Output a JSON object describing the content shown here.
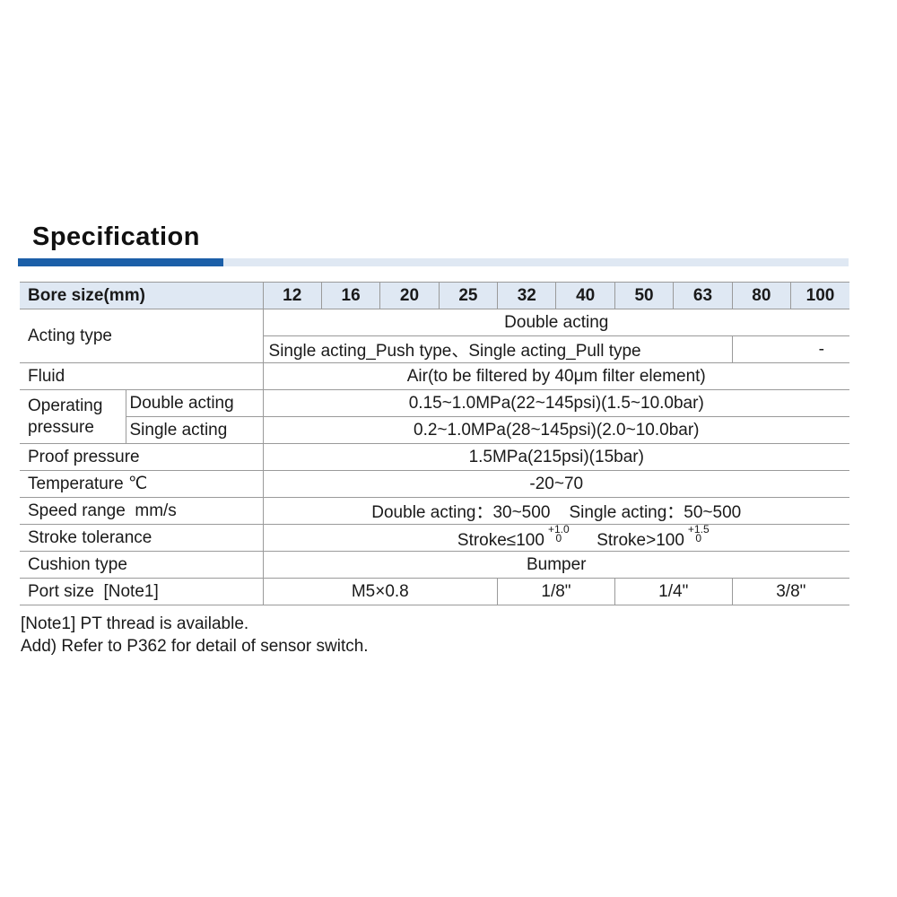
{
  "title": "Specification",
  "colors": {
    "accent": "#1b5fa8",
    "header_bg": "#dfe8f3"
  },
  "table": {
    "bore_label": "Bore size(mm)",
    "bore_sizes": [
      "12",
      "16",
      "20",
      "25",
      "32",
      "40",
      "50",
      "63",
      "80",
      "100"
    ],
    "acting_type": {
      "label": "Acting type",
      "double": "Double acting",
      "single": "Single acting_Push type、Single acting_Pull type",
      "single_large": "-"
    },
    "fluid": {
      "label": "Fluid",
      "value": "Air(to be filtered by 40μm filter element)"
    },
    "operating_pressure": {
      "label": "Operating pressure",
      "double_label": "Double acting",
      "double_value": "0.15~1.0MPa(22~145psi)(1.5~10.0bar)",
      "single_label": "Single acting",
      "single_value": "0.2~1.0MPa(28~145psi)(2.0~10.0bar)"
    },
    "proof_pressure": {
      "label": "Proof pressure",
      "value": "1.5MPa(215psi)(15bar)"
    },
    "temperature": {
      "label": "Temperature ℃",
      "value": "-20~70"
    },
    "speed_range": {
      "label": "Speed range  mm/s",
      "value": "Double acting：30~500    Single acting：50~500"
    },
    "stroke_tolerance": {
      "label": "Stroke tolerance",
      "a": "Stroke≤100",
      "a_upper": "+1.0",
      "a_lower": "0",
      "b": "Stroke>100",
      "b_upper": "+1.5",
      "b_lower": "0"
    },
    "cushion_type": {
      "label": "Cushion type",
      "value": "Bumper"
    },
    "port_size": {
      "label": "Port size  [Note1]",
      "values": [
        "M5×0.8",
        "1/8\"",
        "1/4\"",
        "3/8\""
      ]
    }
  },
  "notes": [
    "[Note1] PT thread is available.",
    "Add) Refer to P362 for detail of sensor switch."
  ]
}
